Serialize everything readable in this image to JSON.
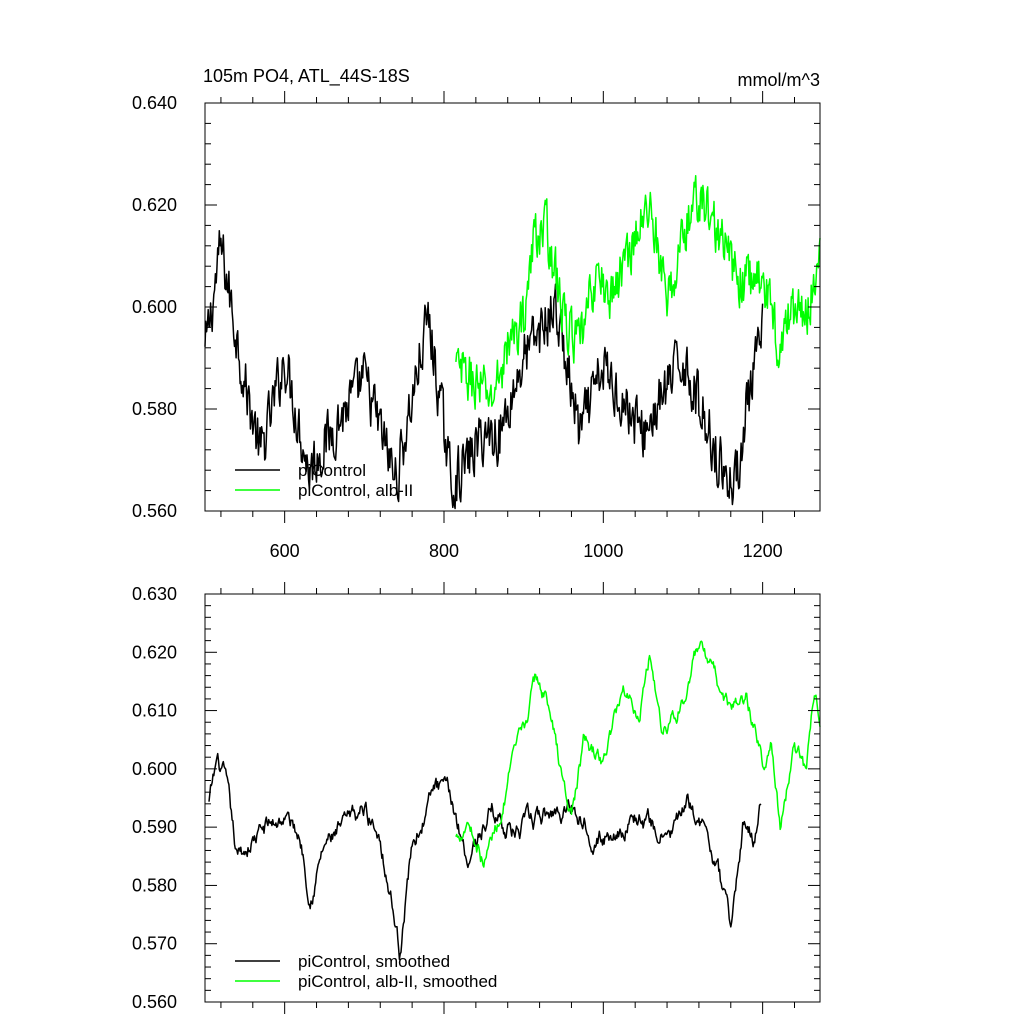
{
  "chart_data": [
    {
      "type": "line",
      "title": "105m PO4, ATL_44S-18S",
      "units": "mmol/m^3",
      "xlabel": "",
      "ylabel": "",
      "xlim": [
        500,
        1272
      ],
      "ylim": [
        0.56,
        0.64
      ],
      "xticks": [
        600,
        800,
        1000,
        1200
      ],
      "xtick_labels": [
        "600",
        "800",
        "1000",
        "1200"
      ],
      "yticks": [
        0.56,
        0.58,
        0.6,
        0.62,
        0.64
      ],
      "ytick_labels": [
        "0.560",
        "0.580",
        "0.600",
        "0.620",
        "0.640"
      ],
      "legend_position": "bottom-left",
      "series": [
        {
          "name": "piControl",
          "color": "#000000",
          "x_start": 500,
          "x_end": 1200,
          "mean": 0.588,
          "noise": 0.0075,
          "shape": "noisy",
          "points": [
            [
              500,
              0.591
            ],
            [
              520,
              0.612
            ],
            [
              550,
              0.585
            ],
            [
              570,
              0.571
            ],
            [
              600,
              0.59
            ],
            [
              630,
              0.568
            ],
            [
              700,
              0.586
            ],
            [
              740,
              0.566
            ],
            [
              780,
              0.598
            ],
            [
              810,
              0.565
            ],
            [
              850,
              0.575
            ],
            [
              870,
              0.575
            ],
            [
              900,
              0.59
            ],
            [
              940,
              0.6
            ],
            [
              970,
              0.575
            ],
            [
              1000,
              0.588
            ],
            [
              1050,
              0.575
            ],
            [
              1100,
              0.59
            ],
            [
              1150,
              0.568
            ],
            [
              1165,
              0.565
            ],
            [
              1180,
              0.58
            ],
            [
              1200,
              0.595
            ]
          ]
        },
        {
          "name": "piControl, alb-II",
          "color": "#00ff00",
          "x_start": 815,
          "x_end": 1272,
          "mean": 0.6,
          "noise": 0.007,
          "shape": "noisy",
          "points": [
            [
              815,
              0.588
            ],
            [
              840,
              0.585
            ],
            [
              860,
              0.582
            ],
            [
              880,
              0.592
            ],
            [
              900,
              0.598
            ],
            [
              915,
              0.615
            ],
            [
              930,
              0.615
            ],
            [
              950,
              0.598
            ],
            [
              970,
              0.592
            ],
            [
              990,
              0.606
            ],
            [
              1010,
              0.602
            ],
            [
              1040,
              0.614
            ],
            [
              1060,
              0.62
            ],
            [
              1080,
              0.6
            ],
            [
              1100,
              0.614
            ],
            [
              1120,
              0.622
            ],
            [
              1140,
              0.616
            ],
            [
              1170,
              0.605
            ],
            [
              1200,
              0.606
            ],
            [
              1220,
              0.593
            ],
            [
              1240,
              0.6
            ],
            [
              1255,
              0.598
            ],
            [
              1272,
              0.612
            ]
          ]
        }
      ]
    },
    {
      "type": "line",
      "title": "",
      "xlabel": "",
      "ylabel": "",
      "xlim": [
        500,
        1272
      ],
      "ylim": [
        0.56,
        0.63
      ],
      "xticks": [
        600,
        800,
        1000,
        1200
      ],
      "xtick_labels": [
        "",
        "",
        "",
        ""
      ],
      "yticks": [
        0.56,
        0.57,
        0.58,
        0.59,
        0.6,
        0.61,
        0.62,
        0.63
      ],
      "ytick_labels": [
        "0.560",
        "0.570",
        "0.580",
        "0.590",
        "0.600",
        "0.610",
        "0.620",
        "0.630"
      ],
      "legend_position": "bottom-left",
      "series": [
        {
          "name": "piControl, smoothed",
          "color": "#000000",
          "x_start": 505,
          "x_end": 1198,
          "mean": 0.589,
          "noise": 0.0035,
          "shape": "smooth",
          "points": [
            [
              505,
              0.594
            ],
            [
              515,
              0.601
            ],
            [
              525,
              0.598
            ],
            [
              540,
              0.584
            ],
            [
              560,
              0.588
            ],
            [
              580,
              0.59
            ],
            [
              600,
              0.592
            ],
            [
              620,
              0.588
            ],
            [
              632,
              0.579
            ],
            [
              650,
              0.587
            ],
            [
              680,
              0.59
            ],
            [
              700,
              0.593
            ],
            [
              720,
              0.589
            ],
            [
              738,
              0.575
            ],
            [
              744,
              0.569
            ],
            [
              760,
              0.587
            ],
            [
              790,
              0.597
            ],
            [
              810,
              0.594
            ],
            [
              830,
              0.585
            ],
            [
              860,
              0.593
            ],
            [
              890,
              0.589
            ],
            [
              920,
              0.591
            ],
            [
              960,
              0.594
            ],
            [
              1000,
              0.588
            ],
            [
              1040,
              0.592
            ],
            [
              1080,
              0.588
            ],
            [
              1110,
              0.594
            ],
            [
              1140,
              0.585
            ],
            [
              1160,
              0.572
            ],
            [
              1175,
              0.59
            ],
            [
              1190,
              0.588
            ],
            [
              1198,
              0.595
            ]
          ]
        },
        {
          "name": "piControl, alb-II, smoothed",
          "color": "#00ff00",
          "x_start": 815,
          "x_end": 1272,
          "mean": 0.6,
          "noise": 0.003,
          "shape": "smooth",
          "points": [
            [
              815,
              0.588
            ],
            [
              830,
              0.592
            ],
            [
              850,
              0.584
            ],
            [
              870,
              0.592
            ],
            [
              885,
              0.6
            ],
            [
              900,
              0.606
            ],
            [
              915,
              0.615
            ],
            [
              930,
              0.612
            ],
            [
              950,
              0.597
            ],
            [
              960,
              0.592
            ],
            [
              975,
              0.604
            ],
            [
              1000,
              0.601
            ],
            [
              1025,
              0.614
            ],
            [
              1045,
              0.61
            ],
            [
              1058,
              0.62
            ],
            [
              1075,
              0.606
            ],
            [
              1100,
              0.612
            ],
            [
              1120,
              0.621
            ],
            [
              1140,
              0.615
            ],
            [
              1160,
              0.61
            ],
            [
              1180,
              0.612
            ],
            [
              1200,
              0.601
            ],
            [
              1210,
              0.606
            ],
            [
              1222,
              0.59
            ],
            [
              1240,
              0.604
            ],
            [
              1255,
              0.598
            ],
            [
              1265,
              0.614
            ],
            [
              1272,
              0.608
            ]
          ]
        }
      ]
    }
  ]
}
